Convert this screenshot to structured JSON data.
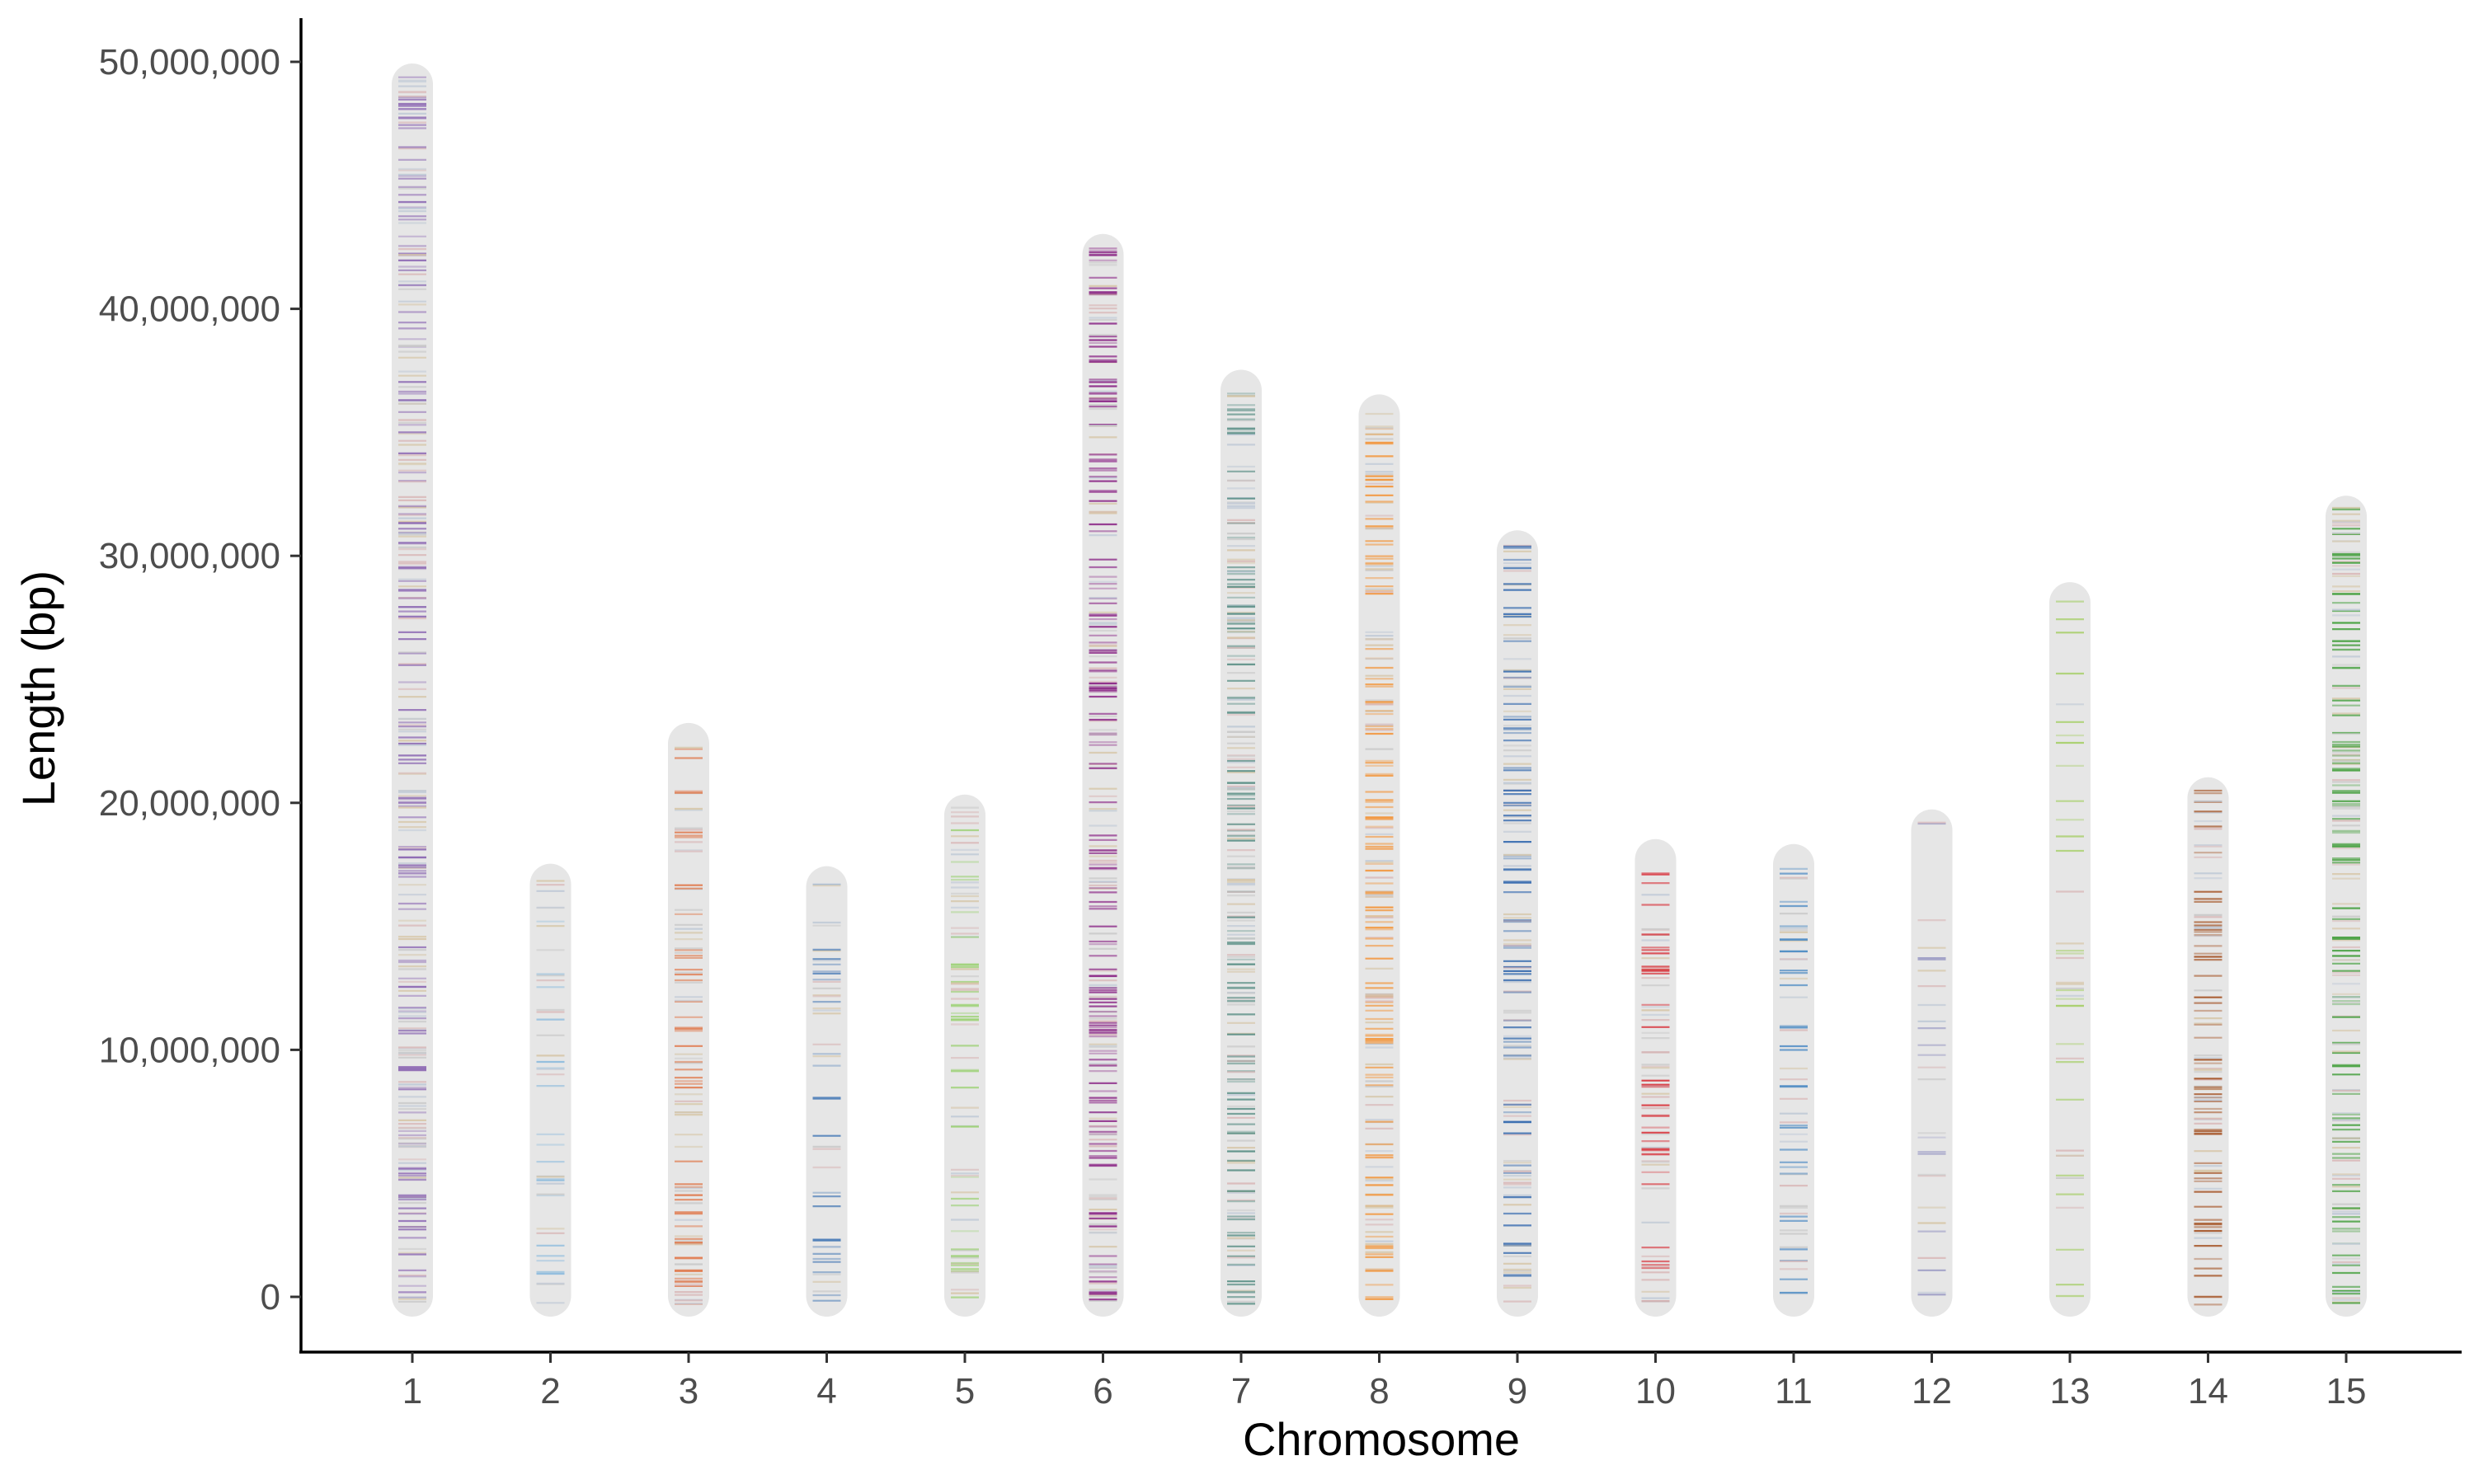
{
  "chart_data": {
    "type": "chromosome-ideogram",
    "xlabel": "Chromosome",
    "ylabel": "Length (bp)",
    "ylim": [
      -2500000,
      51500000
    ],
    "y_ticks": [
      0,
      10000000,
      20000000,
      30000000,
      40000000,
      50000000
    ],
    "y_tick_labels": [
      "0",
      "10,000,000",
      "20,000,000",
      "30,000,000",
      "40,000,000",
      "50,000,000"
    ],
    "grid": false,
    "legend": "none",
    "chromosome_color": "#e6e6e6",
    "chromosomes": [
      {
        "label": "1",
        "length": 49200000,
        "color": "#8e6bb4",
        "density": 1.25
      },
      {
        "label": "2",
        "length": 16800000,
        "color": "#8fbcdd",
        "density": 0.5
      },
      {
        "label": "3",
        "length": 22500000,
        "color": "#e07b4f",
        "density": 0.9
      },
      {
        "label": "4",
        "length": 16700000,
        "color": "#4f7fb8",
        "density": 0.55
      },
      {
        "label": "5",
        "length": 19600000,
        "color": "#9cd175",
        "density": 0.8
      },
      {
        "label": "6",
        "length": 42300000,
        "color": "#8e2e8a",
        "density": 1.3
      },
      {
        "label": "7",
        "length": 36800000,
        "color": "#5a8f86",
        "density": 1.3
      },
      {
        "label": "8",
        "length": 35800000,
        "color": "#f2973f",
        "density": 1.1
      },
      {
        "label": "9",
        "length": 30300000,
        "color": "#3b6eb0",
        "density": 1.0
      },
      {
        "label": "10",
        "length": 17800000,
        "color": "#d8353d",
        "density": 0.9
      },
      {
        "label": "11",
        "length": 17600000,
        "color": "#4f8cc4",
        "density": 0.7
      },
      {
        "label": "12",
        "length": 19000000,
        "color": "#9f9fc6",
        "density": 0.3
      },
      {
        "label": "13",
        "length": 28200000,
        "color": "#a7cf6a",
        "density": 0.3
      },
      {
        "label": "14",
        "length": 20300000,
        "color": "#a6572a",
        "density": 0.95
      },
      {
        "label": "15",
        "length": 31700000,
        "color": "#46a03f",
        "density": 1.2
      }
    ]
  }
}
